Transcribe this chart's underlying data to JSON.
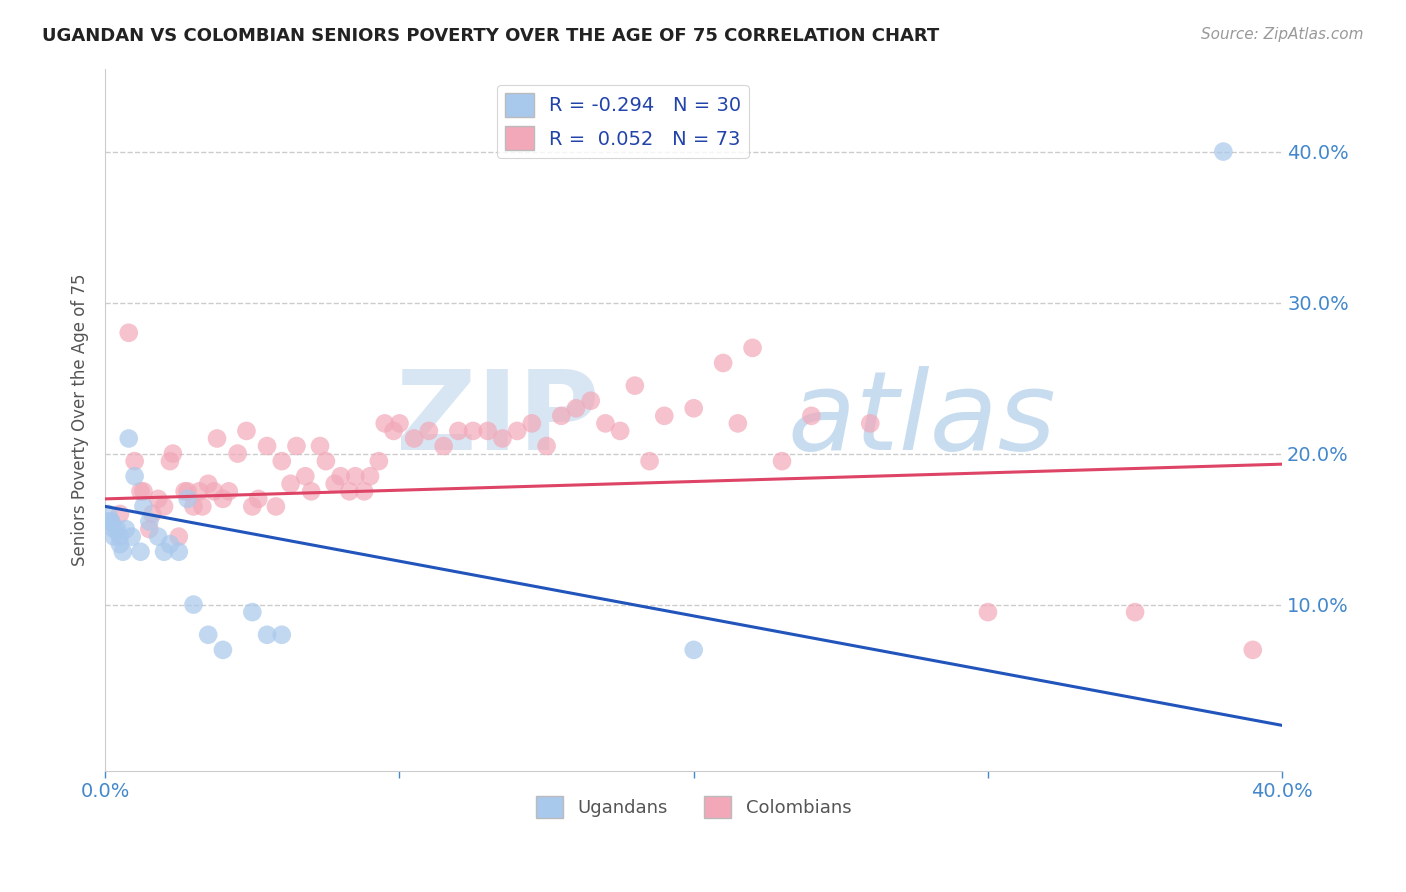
{
  "title": "UGANDAN VS COLOMBIAN SENIORS POVERTY OVER THE AGE OF 75 CORRELATION CHART",
  "source": "Source: ZipAtlas.com",
  "ylabel": "Seniors Poverty Over the Age of 75",
  "y_tick_labels": [
    "10.0%",
    "20.0%",
    "30.0%",
    "40.0%"
  ],
  "y_tick_positions": [
    0.1,
    0.2,
    0.3,
    0.4
  ],
  "xlim": [
    0.0,
    0.4
  ],
  "ylim": [
    -0.01,
    0.455
  ],
  "ugandan_color": "#A8C8EC",
  "colombian_color": "#F2A8B8",
  "ugandan_line_color": "#2255BB",
  "colombian_line_color": "#DD4466",
  "ugandan_x": [
    0.001,
    0.001,
    0.002,
    0.002,
    0.003,
    0.003,
    0.004,
    0.005,
    0.005,
    0.006,
    0.007,
    0.008,
    0.009,
    0.01,
    0.012,
    0.013,
    0.015,
    0.018,
    0.02,
    0.022,
    0.025,
    0.028,
    0.03,
    0.035,
    0.04,
    0.05,
    0.055,
    0.06,
    0.2,
    0.38
  ],
  "ugandan_y": [
    0.155,
    0.16,
    0.155,
    0.155,
    0.15,
    0.145,
    0.15,
    0.14,
    0.145,
    0.135,
    0.15,
    0.21,
    0.145,
    0.185,
    0.135,
    0.165,
    0.155,
    0.145,
    0.135,
    0.14,
    0.135,
    0.17,
    0.1,
    0.08,
    0.07,
    0.095,
    0.08,
    0.08,
    0.07,
    0.4
  ],
  "colombian_x": [
    0.005,
    0.008,
    0.01,
    0.012,
    0.013,
    0.015,
    0.016,
    0.018,
    0.02,
    0.022,
    0.023,
    0.025,
    0.027,
    0.028,
    0.03,
    0.032,
    0.033,
    0.035,
    0.037,
    0.038,
    0.04,
    0.042,
    0.045,
    0.048,
    0.05,
    0.052,
    0.055,
    0.058,
    0.06,
    0.063,
    0.065,
    0.068,
    0.07,
    0.073,
    0.075,
    0.078,
    0.08,
    0.083,
    0.085,
    0.088,
    0.09,
    0.093,
    0.095,
    0.098,
    0.1,
    0.105,
    0.11,
    0.115,
    0.12,
    0.125,
    0.13,
    0.135,
    0.14,
    0.145,
    0.15,
    0.155,
    0.16,
    0.165,
    0.17,
    0.175,
    0.18,
    0.185,
    0.19,
    0.2,
    0.21,
    0.215,
    0.22,
    0.23,
    0.24,
    0.26,
    0.3,
    0.35,
    0.39
  ],
  "colombian_y": [
    0.16,
    0.28,
    0.195,
    0.175,
    0.175,
    0.15,
    0.16,
    0.17,
    0.165,
    0.195,
    0.2,
    0.145,
    0.175,
    0.175,
    0.165,
    0.175,
    0.165,
    0.18,
    0.175,
    0.21,
    0.17,
    0.175,
    0.2,
    0.215,
    0.165,
    0.17,
    0.205,
    0.165,
    0.195,
    0.18,
    0.205,
    0.185,
    0.175,
    0.205,
    0.195,
    0.18,
    0.185,
    0.175,
    0.185,
    0.175,
    0.185,
    0.195,
    0.22,
    0.215,
    0.22,
    0.21,
    0.215,
    0.205,
    0.215,
    0.215,
    0.215,
    0.21,
    0.215,
    0.22,
    0.205,
    0.225,
    0.23,
    0.235,
    0.22,
    0.215,
    0.245,
    0.195,
    0.225,
    0.23,
    0.26,
    0.22,
    0.27,
    0.195,
    0.225,
    0.22,
    0.095,
    0.095,
    0.07
  ],
  "ugandan_trend_x": [
    0.0,
    0.4
  ],
  "ugandan_trend_y": [
    0.165,
    0.02
  ],
  "colombian_trend_x": [
    0.0,
    0.4
  ],
  "colombian_trend_y": [
    0.17,
    0.193
  ]
}
